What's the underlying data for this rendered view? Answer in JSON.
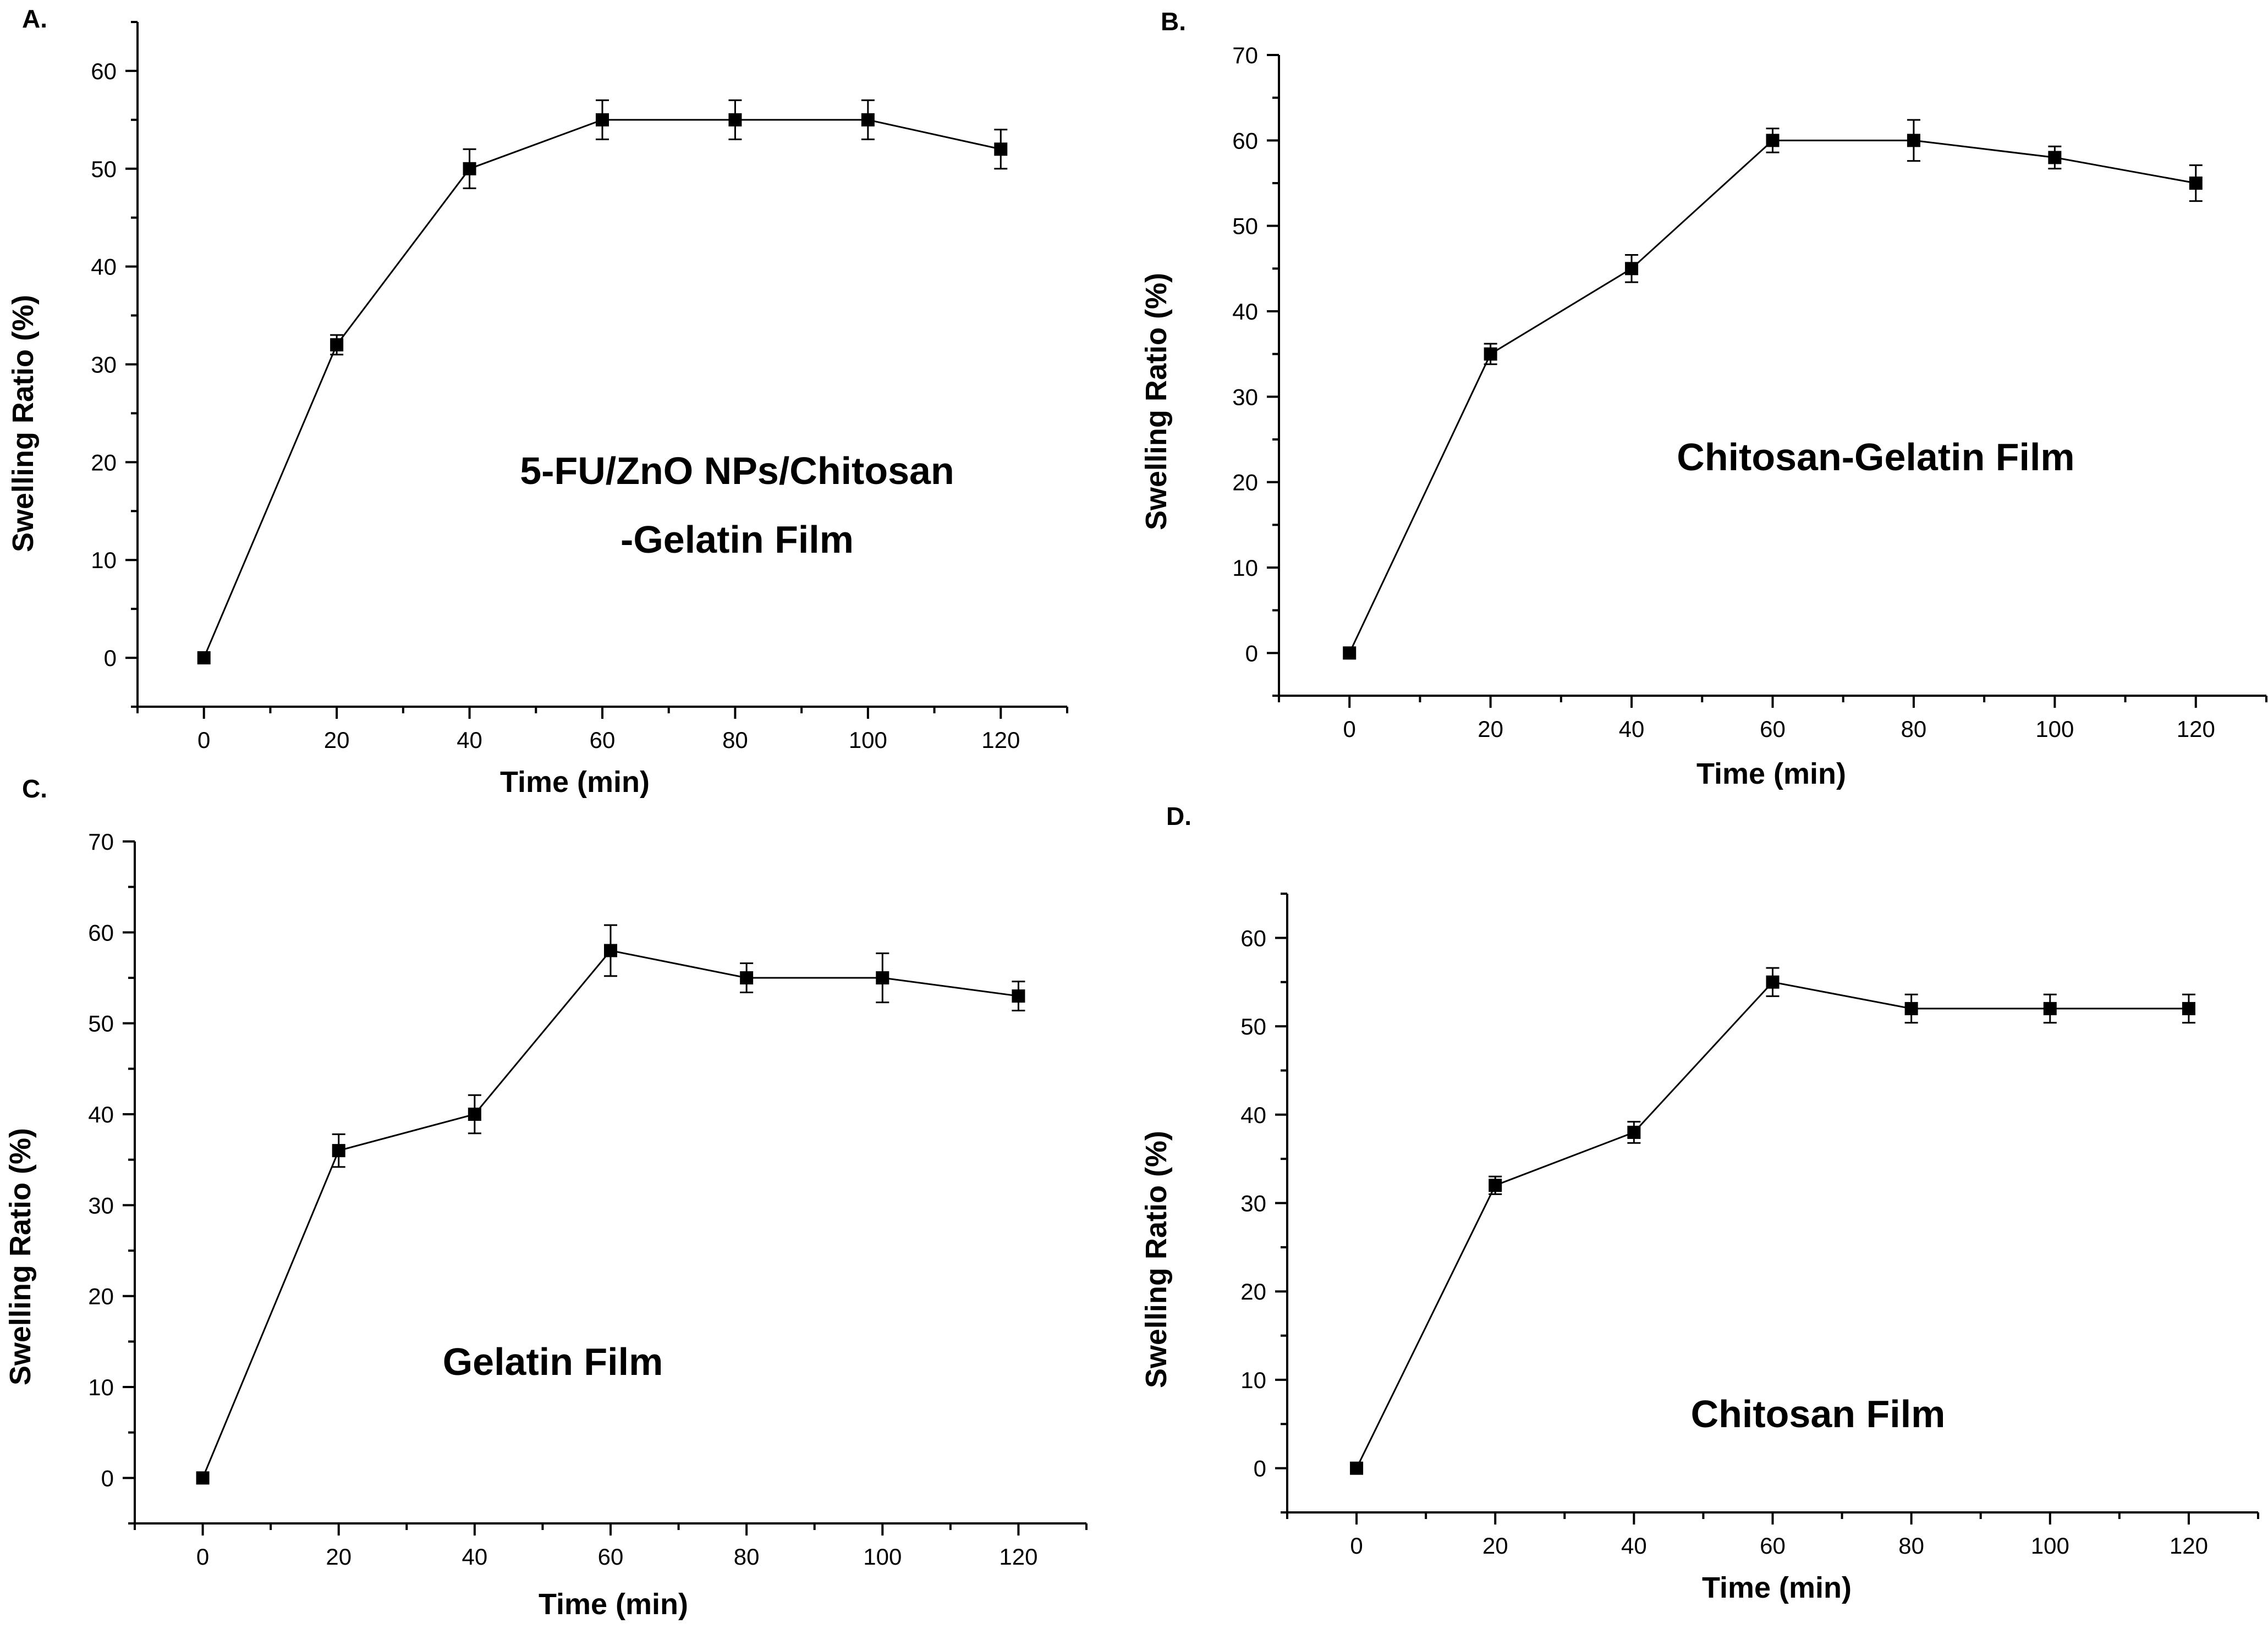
{
  "chart_data": [
    {
      "type": "line",
      "panel": "A.",
      "annotation": [
        "5-FU/ZnO NPs/Chitosan",
        "-Gelatin  Film"
      ],
      "xlabel": "Time (min)",
      "ylabel": "Swelling Ratio (%)",
      "x": [
        0,
        20,
        40,
        60,
        80,
        100,
        120
      ],
      "y": [
        0,
        32,
        50,
        55,
        55,
        55,
        52
      ],
      "yerr": [
        0,
        1,
        2,
        2,
        2,
        2,
        2
      ],
      "xlim": [
        -10,
        130
      ],
      "ylim": [
        -5,
        65
      ],
      "xticks": [
        0,
        20,
        40,
        60,
        80,
        100,
        120
      ],
      "yticks": [
        0,
        10,
        20,
        30,
        40,
        50,
        60
      ],
      "marker": "square",
      "color": "#000000"
    },
    {
      "type": "line",
      "panel": "B.",
      "annotation": [
        "Chitosan-Gelatin  Film"
      ],
      "xlabel": "Time (min)",
      "ylabel": "Swelling Ratio (%)",
      "x": [
        0,
        20,
        40,
        60,
        80,
        100,
        120
      ],
      "y": [
        0,
        35,
        45,
        60,
        60,
        58,
        55
      ],
      "yerr": [
        0,
        1.2,
        1.6,
        1.4,
        2.4,
        1.3,
        2.1
      ],
      "xlim": [
        -10,
        130
      ],
      "ylim": [
        -5,
        70
      ],
      "xticks": [
        0,
        20,
        40,
        60,
        80,
        100,
        120
      ],
      "yticks": [
        0,
        10,
        20,
        30,
        40,
        50,
        60,
        70
      ],
      "marker": "square",
      "color": "#000000"
    },
    {
      "type": "line",
      "panel": "C.",
      "annotation": [
        "Gelatin Film"
      ],
      "xlabel": "Time (min)",
      "ylabel": "Swelling Ratio (%)",
      "x": [
        0,
        20,
        40,
        60,
        80,
        100,
        120
      ],
      "y": [
        0,
        36,
        40,
        58,
        55,
        55,
        53
      ],
      "yerr": [
        0,
        1.8,
        2.1,
        2.8,
        1.6,
        2.7,
        1.6
      ],
      "xlim": [
        -10,
        130
      ],
      "ylim": [
        -5,
        70
      ],
      "xticks": [
        0,
        20,
        40,
        60,
        80,
        100,
        120
      ],
      "yticks": [
        0,
        10,
        20,
        30,
        40,
        50,
        60,
        70
      ],
      "marker": "square",
      "color": "#000000"
    },
    {
      "type": "line",
      "panel": "D.",
      "annotation": [
        "Chitosan Film"
      ],
      "xlabel": "Time (min)",
      "ylabel": "Swelling Ratio (%)",
      "x": [
        0,
        20,
        40,
        60,
        80,
        100,
        120
      ],
      "y": [
        0,
        32,
        38,
        55,
        52,
        52,
        52
      ],
      "yerr": [
        0,
        1,
        1.2,
        1.6,
        1.6,
        1.6,
        1.6
      ],
      "xlim": [
        -10,
        130
      ],
      "ylim": [
        -5,
        65
      ],
      "xticks": [
        0,
        20,
        40,
        60,
        80,
        100,
        120
      ],
      "yticks": [
        0,
        10,
        20,
        30,
        40,
        50,
        60
      ],
      "marker": "square",
      "color": "#000000"
    }
  ]
}
